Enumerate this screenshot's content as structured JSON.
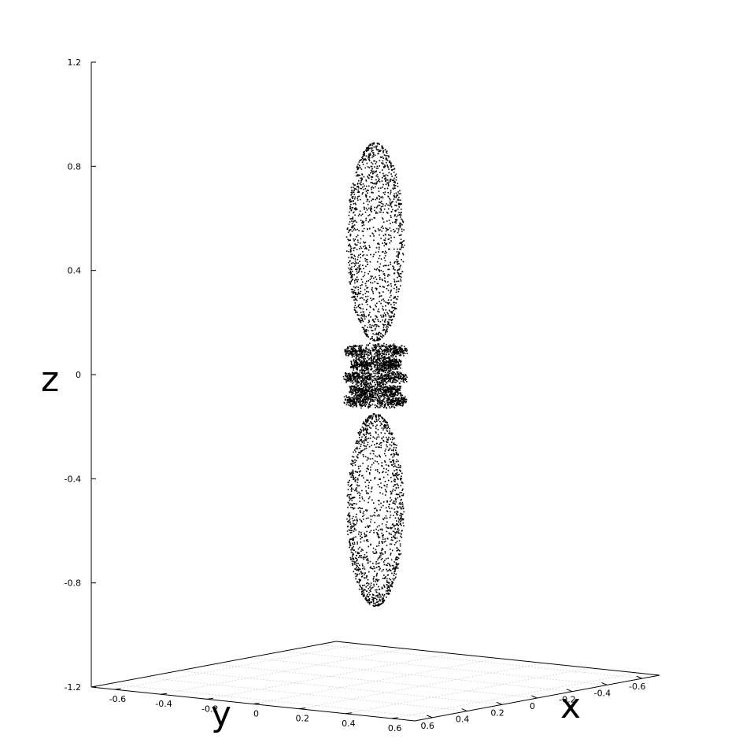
{
  "chart_data": {
    "type": "scatter",
    "title": "",
    "xlabel": "x",
    "ylabel": "y",
    "zlabel": "z",
    "xlim": [
      -0.7,
      0.7
    ],
    "ylim": [
      -0.7,
      0.7
    ],
    "zlim": [
      -1.2,
      1.2
    ],
    "x_ticks": [
      "-0.6",
      "-0.4",
      "-0.2",
      "0",
      "0.2",
      "0.4",
      "0.6"
    ],
    "y_ticks": [
      "-0.6",
      "-0.4",
      "-0.2",
      "0",
      "0.2",
      "0.4",
      "0.6"
    ],
    "z_ticks": [
      "1.2",
      "0.8",
      "0.4",
      "0",
      "-0.4",
      "-0.8",
      "-1.2"
    ],
    "grid": true,
    "point_color": "#000000",
    "series": [
      {
        "description_shape": "polar lobes along z with toroidal rings near z=0",
        "lobes": [
          {
            "z_center": 0.51,
            "z_half_height": 0.38,
            "max_radius": 0.1
          },
          {
            "z_center": -0.52,
            "z_half_height": 0.37,
            "max_radius": 0.1
          }
        ],
        "rings": [
          {
            "z": 0.09,
            "radius": 0.11
          },
          {
            "z": 0.04,
            "radius": 0.09
          },
          {
            "z": -0.01,
            "radius": 0.11
          },
          {
            "z": -0.06,
            "radius": 0.09
          },
          {
            "z": -0.1,
            "radius": 0.11
          }
        ]
      }
    ]
  }
}
